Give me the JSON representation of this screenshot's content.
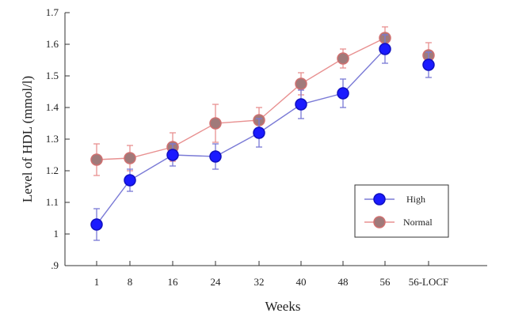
{
  "chart_data": {
    "type": "line",
    "title": "",
    "xlabel": "Weeks",
    "ylabel": "Level of HDL (mmol/l)",
    "categories": [
      "1",
      "8",
      "16",
      "24",
      "32",
      "40",
      "48",
      "56",
      "56-LOCF"
    ],
    "ylim": [
      0.9,
      1.7
    ],
    "yticks": [
      0.9,
      1.0,
      1.1,
      1.2,
      1.3,
      1.4,
      1.5,
      1.6,
      1.7
    ],
    "ytick_labels": [
      ".9",
      "1",
      "1.1",
      "1.2",
      "1.3",
      "1.4",
      "1.5",
      "1.6",
      "1.7"
    ],
    "grid": false,
    "legend_position": "lower-right",
    "series": [
      {
        "name": "High",
        "color": "#1a1aff",
        "line_color": "#7a7ad6",
        "values": [
          1.03,
          1.17,
          1.25,
          1.245,
          1.32,
          1.41,
          1.445,
          1.585,
          1.535
        ],
        "error": [
          0.05,
          0.035,
          0.035,
          0.04,
          0.045,
          0.045,
          0.045,
          0.045,
          0.04
        ],
        "connected_count": 8
      },
      {
        "name": "Normal",
        "color": "#a07a7a",
        "line_color": "#e89090",
        "values": [
          1.235,
          1.24,
          1.275,
          1.35,
          1.36,
          1.475,
          1.555,
          1.62,
          1.565
        ],
        "error": [
          0.05,
          0.04,
          0.045,
          0.06,
          0.04,
          0.035,
          0.03,
          0.035,
          0.04
        ],
        "connected_count": 8
      }
    ]
  }
}
